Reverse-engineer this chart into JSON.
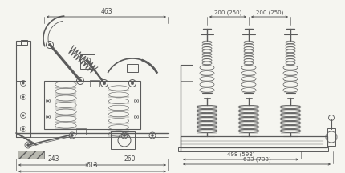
{
  "bg_color": "#f5f5f0",
  "line_color": "#5a5a5a",
  "dim_color": "#4a4a4a",
  "fig_width": 4.31,
  "fig_height": 2.16,
  "dpi": 100,
  "dim_top_left": "463",
  "dim_bot_left_1": "243",
  "dim_bot_left_2": "260",
  "dim_bot_left_tot": "613",
  "dim_top_right_1": "200 (250)",
  "dim_top_right_2": "200 (250)",
  "dim_bot_right_1": "498 (598)",
  "dim_bot_right_tot": "633 (733)"
}
